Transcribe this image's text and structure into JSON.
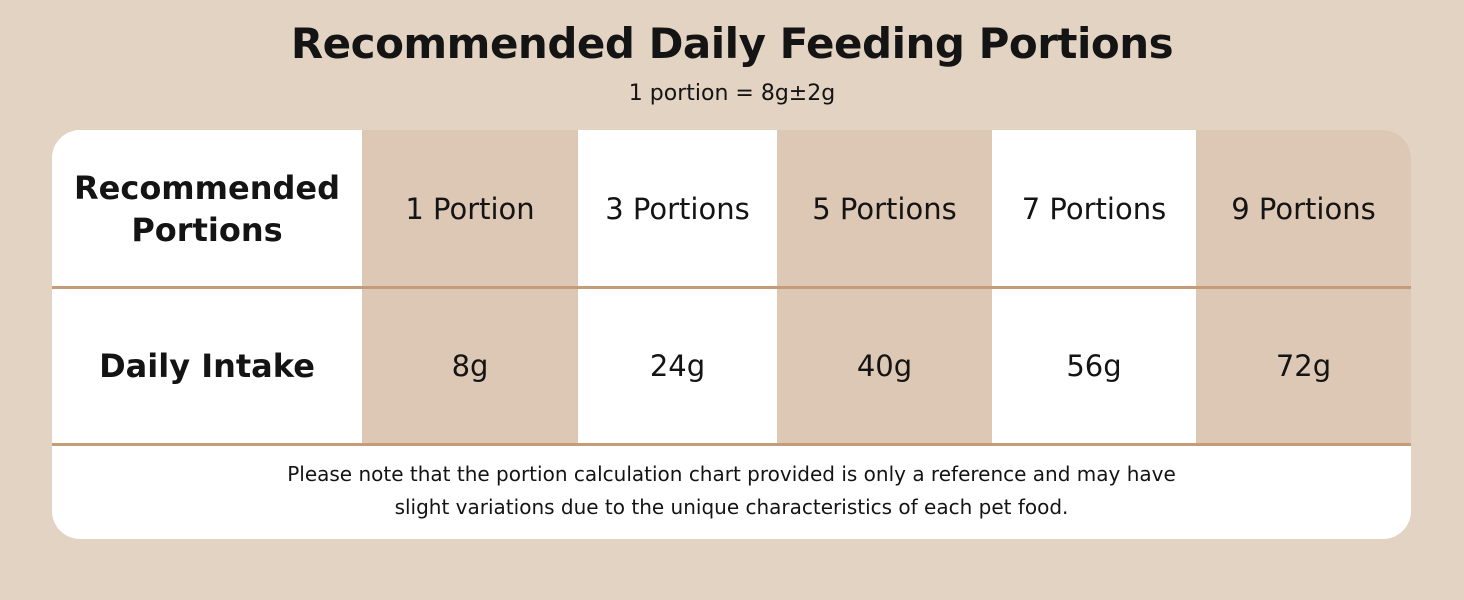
{
  "header": {
    "title": "Recommended Daily Feeding Portions",
    "subtitle": "1 portion = 8g±2g"
  },
  "table": {
    "row_headers": [
      "Recommended Portions",
      "Daily Intake"
    ],
    "columns": [
      {
        "portion": "1 Portion",
        "intake": "8g"
      },
      {
        "portion": "3 Portions",
        "intake": "24g"
      },
      {
        "portion": "5 Portions",
        "intake": "40g"
      },
      {
        "portion": "7 Portions",
        "intake": "56g"
      },
      {
        "portion": "9 Portions",
        "intake": "72g"
      }
    ]
  },
  "note": {
    "line1": "Please note that the portion calculation chart provided is only a reference and may have",
    "line2": "slight variations due to the unique characteristics of each pet food."
  },
  "colors": {
    "background": "#e3d3c2",
    "card": "#ffffff",
    "shaded_column": "#ddc8b5",
    "divider": "#c49c78",
    "text": "#141414"
  }
}
